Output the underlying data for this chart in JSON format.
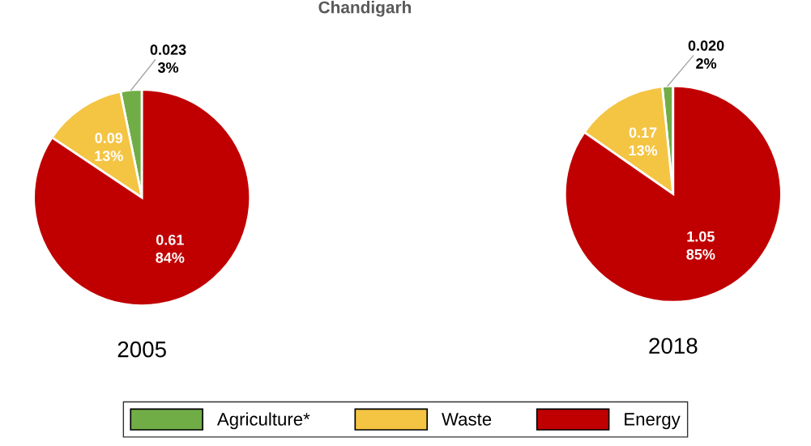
{
  "chart_data": [
    {
      "type": "pie",
      "title": "2005",
      "annotations": [
        "Chandigarh"
      ],
      "categories": [
        "Agriculture*",
        "Waste",
        "Energy"
      ],
      "values": [
        0.023,
        0.09,
        0.61
      ],
      "colors": [
        "#70ad47",
        "#f4c443",
        "#c00000"
      ],
      "value_labels": [
        "0.023\n3%",
        "0.09\n13%",
        "0.61\n84%"
      ],
      "legend": "bottom"
    },
    {
      "type": "pie",
      "title": "2018",
      "categories": [
        null,
        null,
        null
      ],
      "values": [
        0.02,
        0.17,
        1.05
      ],
      "colors": [
        "#70ad47",
        "#f4c443",
        "#c00000"
      ],
      "value_labels": [
        "0.020\n2%",
        "0.17\n13%",
        "1.05\n85%"
      ]
    }
  ]
}
